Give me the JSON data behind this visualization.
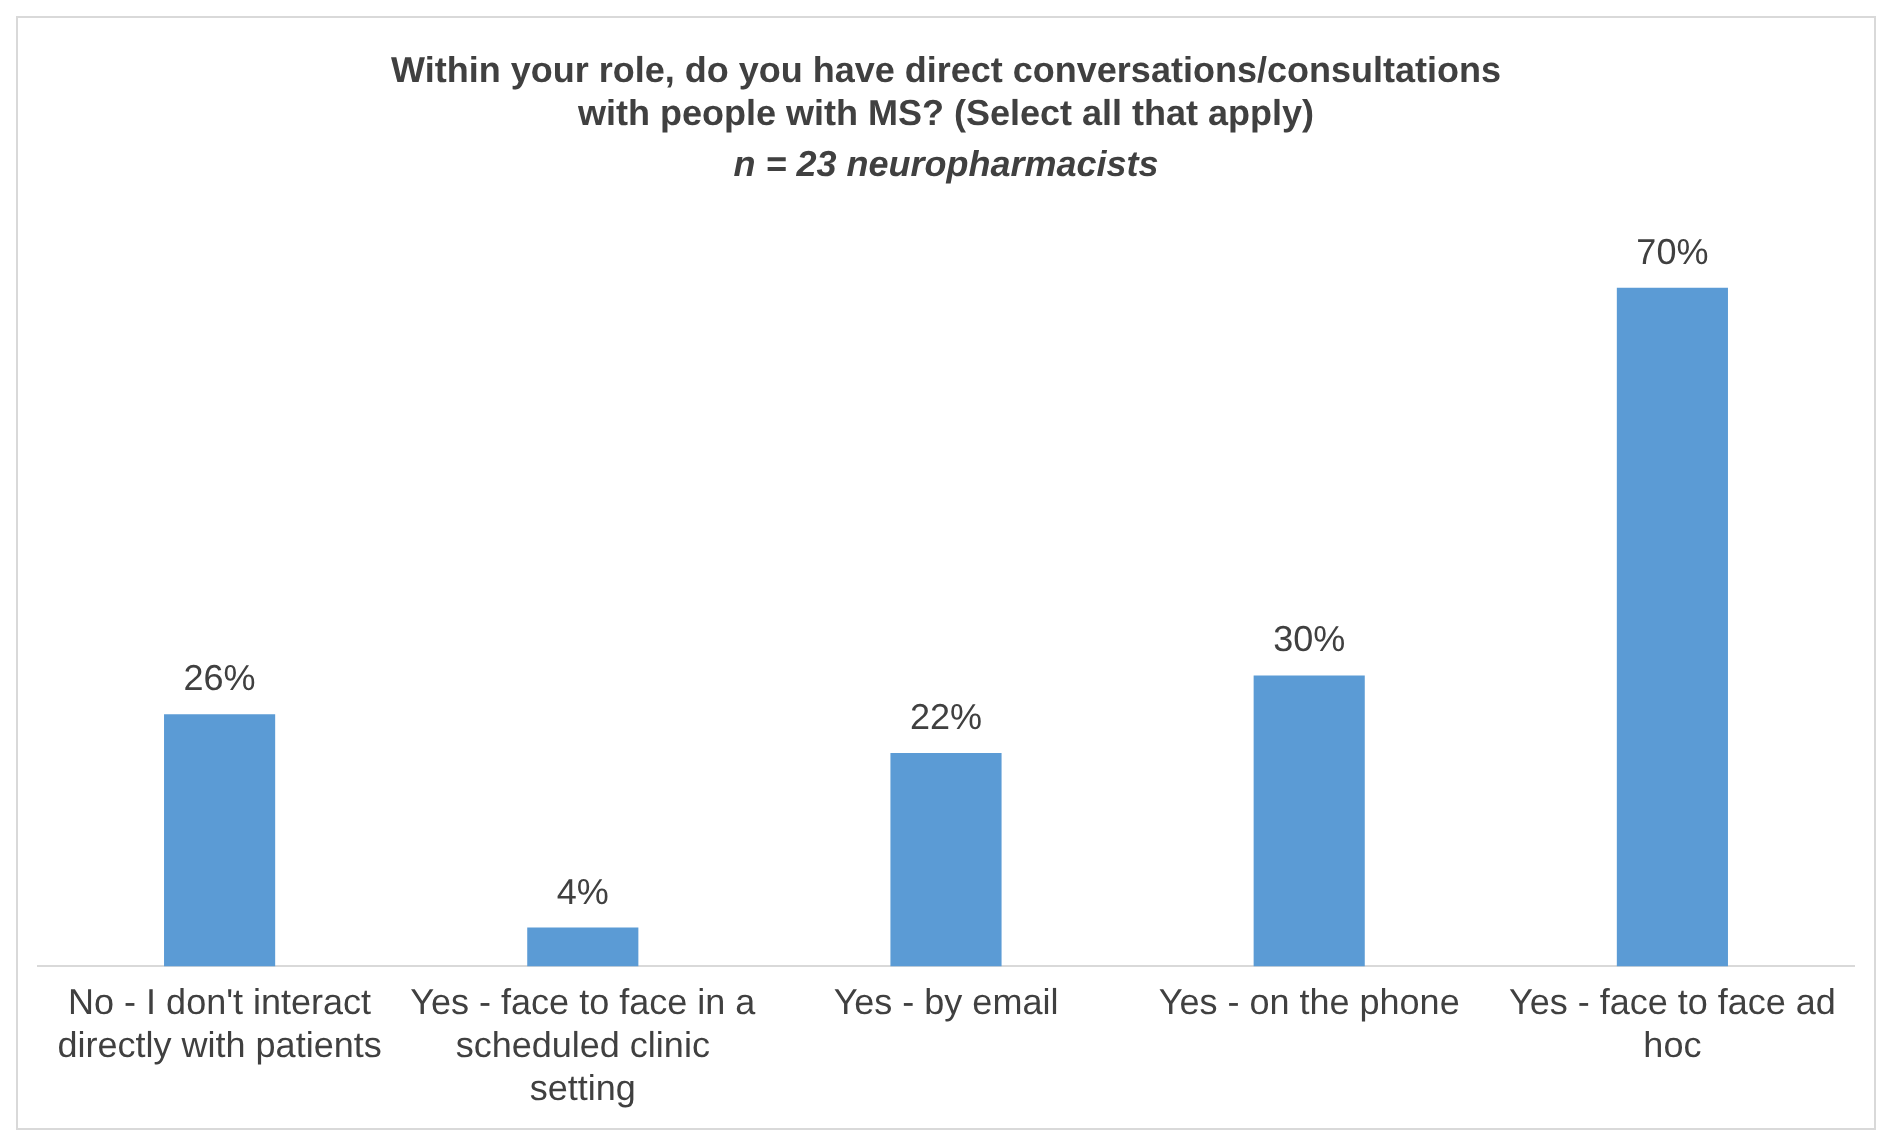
{
  "chart_data": {
    "type": "bar",
    "title": "Within your role, do you have direct conversations/consultations with people with MS? (Select all that apply)",
    "subtitle": "n = 23 neuropharmacists",
    "categories": [
      "No - I don't interact directly with patients",
      "Yes - face to face in a scheduled clinic setting",
      "Yes - by email",
      "Yes - on the phone",
      "Yes - face to face ad hoc"
    ],
    "values": [
      26,
      4,
      22,
      30,
      70
    ],
    "value_labels": [
      "26%",
      "4%",
      "22%",
      "30%",
      "70%"
    ],
    "color": "#5b9bd5",
    "grid": false,
    "legend": false
  }
}
